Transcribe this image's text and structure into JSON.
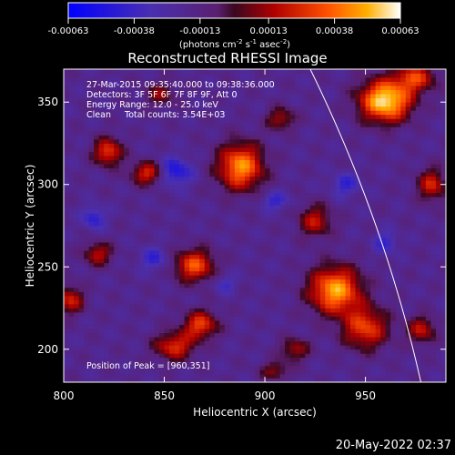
{
  "chart_data": {
    "type": "heatmap",
    "title": "Reconstructed RHESSI Image",
    "xlabel": "Heliocentric X (arcsec)",
    "ylabel": "Heliocentric Y (arcsec)",
    "xlim": [
      800,
      990
    ],
    "ylim": [
      180,
      370
    ],
    "xticks": [
      "800",
      "850",
      "900",
      "950"
    ],
    "yticks": [
      "200",
      "250",
      "300",
      "350"
    ],
    "xtick_values": [
      800,
      850,
      900,
      950
    ],
    "ytick_values": [
      200,
      250,
      300,
      350
    ],
    "colorbar": {
      "min": -0.00063,
      "max": 0.00063,
      "ticks": [
        "-0.00063",
        "-0.00038",
        "-0.00013",
        "0.00013",
        "0.00038",
        "0.00063"
      ],
      "unit_label": "(photons cm",
      "unit_sup1": "-2",
      "unit_mid": " s",
      "unit_sup2": "-1",
      "unit_end": " asec",
      "unit_sup3": "-2",
      "unit_close": ")"
    },
    "info_lines": [
      "27-Mar-2015 09:35:40.000 to 09:38:36.000",
      "Detectors: 3F 5F 6F 7F 8F 9F, Att 0",
      "Energy Range: 12.0 - 25.0 keV",
      "Clean     Total counts: 3.54E+03"
    ],
    "peak_label": "Position of Peak = [960,351]",
    "peak": {
      "x": 960,
      "y": 351
    },
    "sources": [
      {
        "x": 960,
        "y": 351,
        "sx": 9,
        "sy": 9,
        "amp": 1.0
      },
      {
        "x": 975,
        "y": 365,
        "sx": 7,
        "sy": 6,
        "amp": 0.55
      },
      {
        "x": 888,
        "y": 311,
        "sx": 8,
        "sy": 10,
        "amp": 0.8
      },
      {
        "x": 822,
        "y": 320,
        "sx": 5,
        "sy": 6,
        "amp": 0.6
      },
      {
        "x": 842,
        "y": 307,
        "sx": 6,
        "sy": 5,
        "amp": 0.55
      },
      {
        "x": 935,
        "y": 236,
        "sx": 9,
        "sy": 10,
        "amp": 0.85
      },
      {
        "x": 950,
        "y": 213,
        "sx": 8,
        "sy": 9,
        "amp": 0.6
      },
      {
        "x": 865,
        "y": 251,
        "sx": 7,
        "sy": 7,
        "amp": 0.65
      },
      {
        "x": 855,
        "y": 202,
        "sx": 7,
        "sy": 6,
        "amp": 0.55
      },
      {
        "x": 868,
        "y": 215,
        "sx": 6,
        "sy": 6,
        "amp": 0.6
      },
      {
        "x": 803,
        "y": 230,
        "sx": 5,
        "sy": 6,
        "amp": 0.5
      },
      {
        "x": 817,
        "y": 258,
        "sx": 5,
        "sy": 5,
        "amp": 0.45
      },
      {
        "x": 925,
        "y": 278,
        "sx": 6,
        "sy": 7,
        "amp": 0.45
      },
      {
        "x": 915,
        "y": 200,
        "sx": 5,
        "sy": 5,
        "amp": 0.4
      },
      {
        "x": 983,
        "y": 300,
        "sx": 5,
        "sy": 7,
        "amp": 0.5
      },
      {
        "x": 978,
        "y": 212,
        "sx": 5,
        "sy": 6,
        "amp": 0.45
      },
      {
        "x": 908,
        "y": 340,
        "sx": 5,
        "sy": 5,
        "amp": 0.4
      },
      {
        "x": 848,
        "y": 355,
        "sx": 5,
        "sy": 5,
        "amp": 0.35
      },
      {
        "x": 905,
        "y": 187,
        "sx": 5,
        "sy": 4,
        "amp": 0.35
      }
    ],
    "negatives": [
      {
        "x": 855,
        "y": 308,
        "sx": 6,
        "sy": 6,
        "amp": 0.45
      },
      {
        "x": 815,
        "y": 280,
        "sx": 4,
        "sy": 5,
        "amp": 0.35
      },
      {
        "x": 845,
        "y": 255,
        "sx": 5,
        "sy": 5,
        "amp": 0.3
      },
      {
        "x": 905,
        "y": 290,
        "sx": 5,
        "sy": 4,
        "amp": 0.3
      },
      {
        "x": 940,
        "y": 300,
        "sx": 5,
        "sy": 5,
        "amp": 0.3
      },
      {
        "x": 960,
        "y": 265,
        "sx": 4,
        "sy": 5,
        "amp": 0.3
      },
      {
        "x": 880,
        "y": 240,
        "sx": 4,
        "sy": 4,
        "amp": 0.25
      }
    ],
    "limb": {
      "cx": 0,
      "cy": 0,
      "r": 994
    },
    "colors": {
      "frame": "#ffffff",
      "background": "#000000",
      "limb": "#ffffff"
    }
  },
  "timestamp": "20-May-2022 02:37"
}
